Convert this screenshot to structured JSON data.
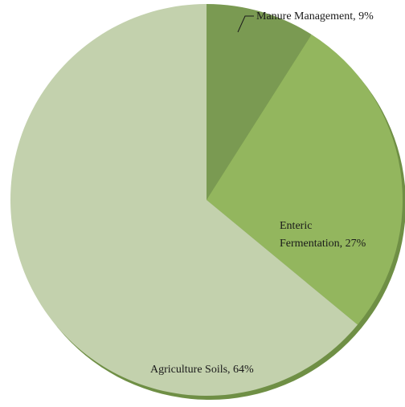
{
  "chart_data": {
    "type": "pie",
    "title": "",
    "slices": [
      {
        "label": "Manure Management",
        "value": 9,
        "value_label": "9%",
        "color": "#7a9a52"
      },
      {
        "label": "Enteric Fermentation",
        "value": 27,
        "value_label": "27%",
        "color": "#93b65e"
      },
      {
        "label": "Agriculture Soils",
        "value": 64,
        "value_label": "64%",
        "color": "#c3d1ad"
      }
    ],
    "start_angle_deg": 0,
    "direction": "clockwise",
    "legend": "none",
    "labels": {
      "manure": "Manure Management, 9%",
      "enteric_line1": "Enteric",
      "enteric_line2": "Fermentation, 27%",
      "soils": "Agriculture Soils, 64%"
    },
    "shadow_color": "#6f8f45"
  }
}
